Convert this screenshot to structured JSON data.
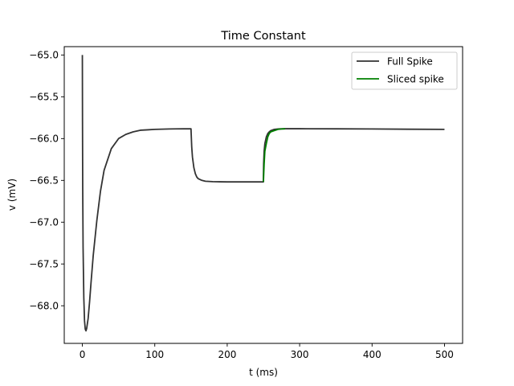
{
  "chart_data": {
    "type": "line",
    "title": "Time Constant",
    "xlabel": "t (ms)",
    "ylabel": "v (mV)",
    "xlim": [
      -25,
      525
    ],
    "ylim": [
      -68.45,
      -64.9
    ],
    "xticks": [
      0,
      100,
      200,
      300,
      400,
      500
    ],
    "yticks": [
      -65.0,
      -65.5,
      -66.0,
      -66.5,
      -67.0,
      -67.5,
      -68.0
    ],
    "xtick_labels": [
      "0",
      "100",
      "200",
      "300",
      "400",
      "500"
    ],
    "ytick_labels": [
      "−65.0",
      "−65.5",
      "−66.0",
      "−66.5",
      "−67.0",
      "−67.5",
      "−68.0"
    ],
    "grid": false,
    "legend": "top-right",
    "series": [
      {
        "name": "Full Spike",
        "color": "#333333",
        "x": [
          0,
          0.2,
          0.5,
          1,
          2,
          3,
          4,
          5,
          6,
          8,
          10,
          12,
          15,
          20,
          25,
          30,
          40,
          50,
          60,
          70,
          80,
          90,
          100,
          110,
          120,
          130,
          140,
          150,
          150.3,
          151,
          152,
          154,
          156,
          158,
          160,
          165,
          170,
          180,
          190,
          200,
          210,
          220,
          230,
          240,
          249.9,
          250,
          250.3,
          251,
          252,
          254,
          256,
          258,
          260,
          265,
          270,
          275,
          280,
          290,
          300,
          350,
          400,
          450,
          500
        ],
        "y": [
          -65.0,
          -65.8,
          -66.6,
          -67.3,
          -67.9,
          -68.18,
          -68.28,
          -68.3,
          -68.27,
          -68.15,
          -67.95,
          -67.72,
          -67.4,
          -66.98,
          -66.63,
          -66.38,
          -66.12,
          -66.0,
          -65.95,
          -65.92,
          -65.9,
          -65.895,
          -65.89,
          -65.887,
          -65.885,
          -65.884,
          -65.883,
          -65.883,
          -65.95,
          -66.1,
          -66.22,
          -66.35,
          -66.42,
          -66.46,
          -66.48,
          -66.5,
          -66.51,
          -66.515,
          -66.517,
          -66.518,
          -66.518,
          -66.518,
          -66.518,
          -66.518,
          -66.518,
          -66.45,
          -66.3,
          -66.15,
          -66.06,
          -65.98,
          -65.94,
          -65.92,
          -65.905,
          -65.89,
          -65.885,
          -65.883,
          -65.882,
          -65.882,
          -65.882,
          -65.883,
          -65.885,
          -65.888,
          -65.89
        ]
      },
      {
        "name": "Sliced spike",
        "color": "#008000",
        "x": [
          250,
          250.3,
          251,
          252,
          254,
          256,
          258,
          260,
          265,
          270,
          275,
          280
        ],
        "y": [
          -66.518,
          -66.45,
          -66.3,
          -66.15,
          -66.06,
          -65.98,
          -65.94,
          -65.92,
          -65.905,
          -65.89,
          -65.885,
          -65.883
        ]
      }
    ]
  }
}
